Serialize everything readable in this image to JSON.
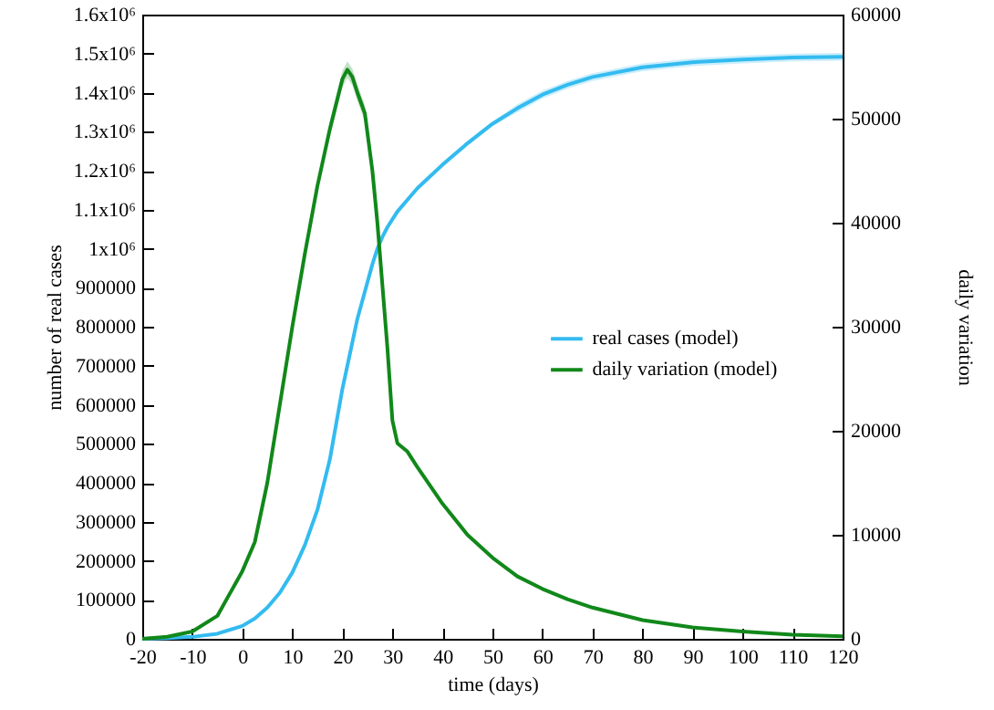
{
  "chart_data": {
    "type": "line",
    "xlabel": "time (days)",
    "ylabel": "number of real cases",
    "y2label": "daily variation",
    "x": [
      -20,
      -15,
      -10,
      -5,
      0,
      2.5,
      5,
      7.5,
      10,
      12.5,
      15,
      17.5,
      20,
      21,
      22,
      23,
      24.5,
      26,
      27,
      28,
      29,
      30,
      31,
      33,
      35,
      40,
      45,
      50,
      55,
      60,
      65,
      70,
      80,
      90,
      100,
      110,
      120
    ],
    "series": [
      {
        "name": "real cases (model)",
        "color": "#33bbf0",
        "values": [
          0,
          1500,
          5000,
          13000,
          33000,
          52000,
          80000,
          118000,
          170000,
          240000,
          330000,
          460000,
          640000,
          700000,
          760000,
          820000,
          890000,
          960000,
          1000000,
          1030000,
          1055000,
          1075000,
          1095000,
          1125000,
          1155000,
          1215000,
          1270000,
          1320000,
          1360000,
          1395000,
          1420000,
          1440000,
          1465000,
          1478000,
          1485000,
          1490000,
          1492000
        ],
        "lower": [
          0,
          1500,
          5000,
          13000,
          33000,
          52000,
          80000,
          118000,
          170000,
          240000,
          330000,
          460000,
          637000,
          697000,
          757000,
          817000,
          887000,
          957000,
          997000,
          1027000,
          1052000,
          1069000,
          1089000,
          1119000,
          1149000,
          1209000,
          1264000,
          1314000,
          1350000,
          1385000,
          1410000,
          1430000,
          1455000,
          1468000,
          1475000,
          1480000,
          1482000
        ],
        "upper": [
          0,
          1500,
          5000,
          13000,
          33000,
          52000,
          80000,
          118000,
          170000,
          240000,
          330000,
          460000,
          643000,
          703000,
          763000,
          823000,
          893000,
          963000,
          1003000,
          1033000,
          1058000,
          1081000,
          1101000,
          1131000,
          1161000,
          1221000,
          1276000,
          1326000,
          1370000,
          1405000,
          1430000,
          1450000,
          1475000,
          1488000,
          1495000,
          1500000,
          1502000
        ]
      },
      {
        "name": "daily variation (model)",
        "color": "#11881a",
        "axis": "y2",
        "values": [
          0,
          200,
          700,
          2200,
          6500,
          9300,
          15000,
          22500,
          30000,
          37000,
          43500,
          49000,
          53800,
          54700,
          54000,
          52500,
          50500,
          45000,
          40000,
          34000,
          28000,
          21000,
          18800,
          18000,
          16500,
          13000,
          10000,
          7800,
          6000,
          4800,
          3800,
          3000,
          1800,
          1100,
          700,
          400,
          250
        ],
        "lower": [
          0,
          200,
          700,
          2200,
          6500,
          9300,
          15000,
          22500,
          30000,
          37000,
          43500,
          48200,
          53000,
          53900,
          53200,
          51700,
          49700,
          45000,
          40000,
          34000,
          28000,
          21000,
          18800,
          18000,
          16500,
          13000,
          10000,
          7800,
          6000,
          4800,
          3800,
          3000,
          1800,
          1100,
          700,
          400,
          250
        ],
        "upper": [
          0,
          200,
          700,
          2200,
          6500,
          9300,
          15000,
          22500,
          30000,
          37000,
          43500,
          49800,
          54600,
          55500,
          54800,
          53300,
          51300,
          45000,
          40000,
          34000,
          28000,
          21000,
          18800,
          18000,
          16500,
          13000,
          10000,
          7800,
          6000,
          4800,
          3800,
          3000,
          1800,
          1100,
          700,
          400,
          250
        ]
      }
    ],
    "xlim": [
      -20,
      120
    ],
    "xticks": [
      -20,
      -10,
      0,
      10,
      20,
      30,
      40,
      50,
      60,
      70,
      80,
      90,
      100,
      110,
      120
    ],
    "ylim": [
      0,
      1600000
    ],
    "yticks": [
      0,
      100000,
      200000,
      300000,
      400000,
      500000,
      600000,
      700000,
      800000,
      900000,
      {
        "value": 1000000,
        "label": "1x10⁶"
      },
      {
        "value": 1100000,
        "label": "1.1x10⁶"
      },
      {
        "value": 1200000,
        "label": "1.2x10⁶"
      },
      {
        "value": 1300000,
        "label": "1.3x10⁶"
      },
      {
        "value": 1400000,
        "label": "1.4x10⁶"
      },
      {
        "value": 1500000,
        "label": "1.5x10⁶"
      },
      {
        "value": 1600000,
        "label": "1.6x10⁶"
      }
    ],
    "y2lim": [
      0,
      60000
    ],
    "y2ticks": [
      0,
      10000,
      20000,
      30000,
      40000,
      50000,
      60000
    ],
    "legend": "right",
    "grid": false,
    "line_style": "solid",
    "marker": "none"
  }
}
